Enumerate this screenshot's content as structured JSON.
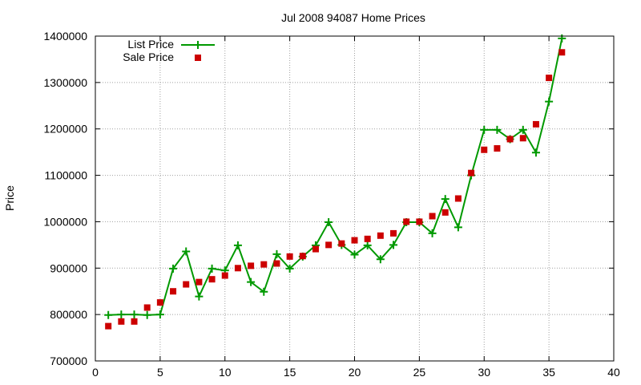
{
  "chart_data": {
    "type": "scatter",
    "title": "Jul 2008 94087 Home Prices",
    "xlabel": "",
    "ylabel": "Price",
    "xlim": [
      0,
      40
    ],
    "ylim": [
      700000,
      1400000
    ],
    "xticks": [
      0,
      5,
      10,
      15,
      20,
      25,
      30,
      35,
      40
    ],
    "yticks": [
      700000,
      800000,
      900000,
      1000000,
      1100000,
      1200000,
      1300000,
      1400000
    ],
    "grid": true,
    "legend_position": "top-left",
    "series": [
      {
        "name": "List Price",
        "style": "line-with-plus-markers",
        "color": "#009900",
        "x": [
          1,
          2,
          3,
          4,
          5,
          6,
          7,
          8,
          9,
          10,
          11,
          12,
          13,
          14,
          15,
          16,
          17,
          18,
          19,
          20,
          21,
          22,
          23,
          24,
          25,
          26,
          27,
          28,
          29,
          30,
          31,
          32,
          33,
          34,
          35,
          36
        ],
        "y": [
          799000,
          800000,
          800000,
          799000,
          800000,
          899000,
          936000,
          839000,
          899000,
          895000,
          949000,
          870000,
          849000,
          930000,
          899000,
          925000,
          949000,
          999000,
          950000,
          929000,
          949000,
          919000,
          950000,
          999000,
          999000,
          975000,
          1049000,
          988000,
          1100000,
          1198000,
          1198000,
          1178000,
          1198000,
          1149000,
          1259000,
          1395000
        ]
      },
      {
        "name": "Sale Price",
        "style": "square-markers",
        "color": "#cc0000",
        "x": [
          1,
          2,
          3,
          4,
          5,
          6,
          7,
          8,
          9,
          10,
          11,
          12,
          13,
          14,
          15,
          16,
          17,
          18,
          19,
          20,
          21,
          22,
          23,
          24,
          25,
          26,
          27,
          28,
          29,
          30,
          31,
          32,
          33,
          34,
          35,
          36
        ],
        "y": [
          775000,
          785000,
          785000,
          815000,
          826000,
          850000,
          865000,
          870000,
          876000,
          884000,
          900000,
          905000,
          908000,
          910000,
          925000,
          926000,
          941000,
          950000,
          953000,
          960000,
          963000,
          970000,
          975000,
          1000000,
          1000000,
          1012000,
          1020000,
          1050000,
          1105000,
          1155000,
          1158000,
          1178000,
          1180000,
          1210000,
          1310000,
          1365000
        ]
      }
    ]
  }
}
